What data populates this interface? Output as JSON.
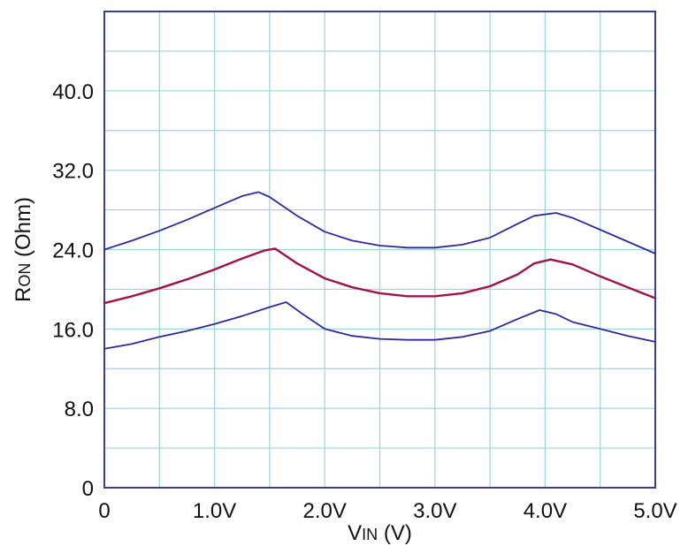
{
  "chart_data": {
    "type": "line",
    "xlim": [
      0,
      5
    ],
    "ylim": [
      0,
      48
    ],
    "x_ticks": [
      {
        "value": 0,
        "label": "0"
      },
      {
        "value": 1,
        "label": "1.0V"
      },
      {
        "value": 2,
        "label": "2.0V"
      },
      {
        "value": 3,
        "label": "3.0V"
      },
      {
        "value": 4,
        "label": "4.0V"
      },
      {
        "value": 5,
        "label": "5.0V"
      }
    ],
    "y_ticks": [
      {
        "value": 0,
        "label": "0"
      },
      {
        "value": 8,
        "label": "8.0"
      },
      {
        "value": 16,
        "label": "16.0"
      },
      {
        "value": 24,
        "label": "24.0"
      },
      {
        "value": 32,
        "label": "32.0"
      },
      {
        "value": 40,
        "label": "40.0"
      }
    ],
    "xlabel": {
      "main": "V",
      "sub": "IN",
      "rest": " (V)"
    },
    "ylabel": {
      "main": "R",
      "sub": "ON",
      "rest": " (Ohm)"
    },
    "grid": true,
    "grid_color": "#9fd3d6",
    "series": [
      {
        "color": "#2e2a9e",
        "x": [
          0,
          0.25,
          0.5,
          0.75,
          1.0,
          1.25,
          1.4,
          1.5,
          1.75,
          2.0,
          2.25,
          2.5,
          2.75,
          3.0,
          3.25,
          3.5,
          3.75,
          3.9,
          4.1,
          4.25,
          4.5,
          4.75,
          5.0
        ],
        "y": [
          24.0,
          24.9,
          25.9,
          27.0,
          28.2,
          29.4,
          29.8,
          29.3,
          27.4,
          25.8,
          24.9,
          24.4,
          24.2,
          24.2,
          24.5,
          25.2,
          26.6,
          27.4,
          27.7,
          27.2,
          26.0,
          24.8,
          23.6
        ]
      },
      {
        "color": "#a0124a",
        "x": [
          0,
          0.25,
          0.5,
          0.75,
          1.0,
          1.25,
          1.45,
          1.55,
          1.75,
          2.0,
          2.25,
          2.5,
          2.75,
          3.0,
          3.25,
          3.5,
          3.75,
          3.9,
          4.05,
          4.25,
          4.5,
          4.75,
          5.0
        ],
        "y": [
          18.6,
          19.3,
          20.1,
          21.0,
          22.0,
          23.1,
          23.9,
          24.1,
          22.6,
          21.1,
          20.2,
          19.6,
          19.3,
          19.3,
          19.6,
          20.3,
          21.5,
          22.6,
          23.0,
          22.5,
          21.3,
          20.2,
          19.1
        ]
      },
      {
        "color": "#2e2a9e",
        "x": [
          0,
          0.25,
          0.5,
          0.75,
          1.0,
          1.25,
          1.5,
          1.65,
          1.8,
          2.0,
          2.25,
          2.5,
          2.75,
          3.0,
          3.25,
          3.5,
          3.75,
          3.95,
          4.1,
          4.25,
          4.5,
          4.75,
          5.0
        ],
        "y": [
          14.0,
          14.5,
          15.2,
          15.8,
          16.5,
          17.3,
          18.2,
          18.7,
          17.5,
          16.0,
          15.3,
          15.0,
          14.9,
          14.9,
          15.2,
          15.8,
          17.0,
          17.9,
          17.5,
          16.7,
          16.0,
          15.3,
          14.7
        ]
      }
    ]
  }
}
